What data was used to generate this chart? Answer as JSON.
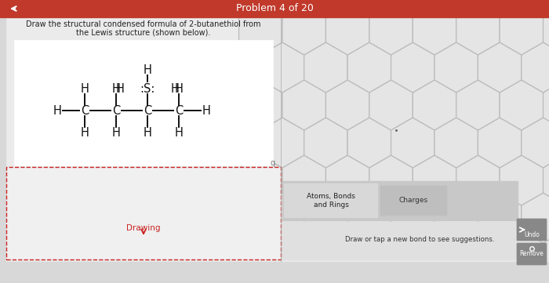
{
  "title": "Problem 4 of 20",
  "title_bar_color": "#c0392b",
  "title_text_color": "#ffffff",
  "bg_color": "#d8d8d8",
  "left_panel_bg": "#ebebeb",
  "right_panel_bg": "#e8e8e8",
  "instruction_line1": "Draw the structural condensed formula of 2-butanethiol from",
  "instruction_line2": "the Lewis structure (shown below).",
  "drawing_label": "Drawing",
  "atoms_bonds_label": "Atoms, Bonds\nand Rings",
  "charges_label": "Charges",
  "suggestion_text": "Draw or tap a new bond to see suggestions.",
  "undo_label": "Undo",
  "remove_label": "Remove",
  "title_bar_height": 22,
  "hex_color": "#cccccc",
  "hex_fill": "#e8e8e8",
  "tab_bar_color": "#c8c8c8",
  "tab_selected_color": "#e0e0e0",
  "suggestion_area_color": "#e8e8e8",
  "bond_color": "#111111",
  "atom_color": "#111111",
  "dashed_rect_color": "#cc2222"
}
